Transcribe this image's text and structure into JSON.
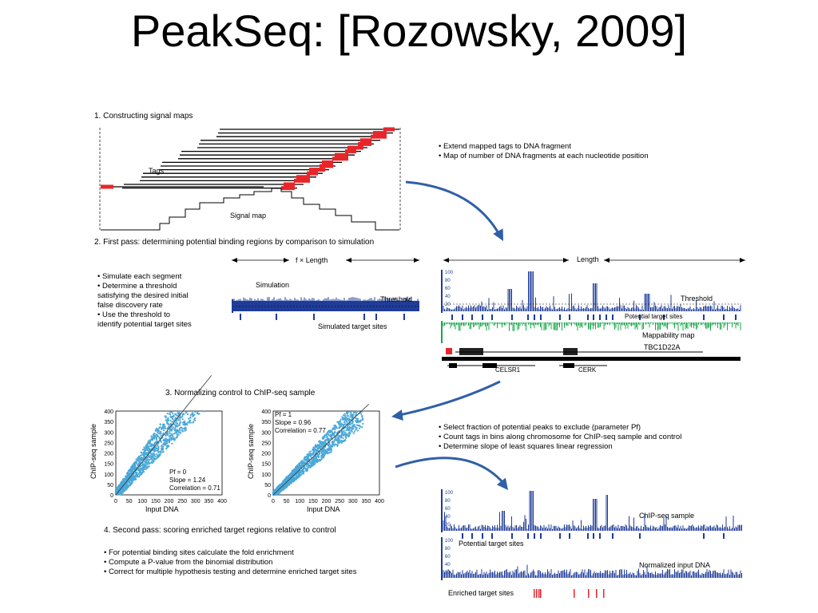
{
  "slide": {
    "title": "PeakSeq: [Rozowsky, 2009]"
  },
  "step1": {
    "heading": "1. Constructing signal maps",
    "tags_label": "Tags",
    "signal_label": "Signal map",
    "bullets": [
      "• Extend mapped tags to DNA fragment",
      "• Map of number of DNA fragments at each nucleotide position"
    ]
  },
  "step2": {
    "heading": "2. First pass: determining potential binding regions by comparison to simulation",
    "bullets": [
      "• Simulate each segment",
      "• Determine a threshold",
      "satisfying the desired initial",
      "false discovery rate",
      "• Use the threshold to",
      "identify potential target sites"
    ],
    "sim_length_label": "f × Length",
    "length_label": "Length",
    "simulation_label": "Simulation",
    "threshold_label": "Threshold",
    "simulated_sites_label": "Simulated target sites",
    "threshold_label_right": "Threshold",
    "potential_sites_label": "Potential target sites",
    "mappability_label": "Mappability map",
    "genes": [
      "TBC1D22A",
      "CELSR1",
      "CERK"
    ],
    "y_ticks": [
      "100",
      "80",
      "60",
      "40",
      "20"
    ]
  },
  "step3": {
    "heading": "3. Normalizing control to ChIP-seq sample",
    "bullets": [
      "• Select fraction of potential peaks to exclude (parameter Pf)",
      "• Count tags in bins along chromosome for ChIP-seq sample and control",
      "• Determine slope of least squares linear regression"
    ],
    "plots": [
      {
        "ylabel": "ChIP-seq sample",
        "xlabel": "Input DNA",
        "stats": [
          "Pf = 0",
          "Slope = 1.24",
          "Correlation = 0.71"
        ]
      },
      {
        "ylabel": "ChIP-seq sample",
        "xlabel": "Input DNA",
        "stats": [
          "Pf = 1",
          "Slope = 0.96",
          "Correlation = 0.77"
        ]
      }
    ],
    "x_ticks": [
      "0",
      "50",
      "100",
      "150",
      "200",
      "250",
      "300",
      "350",
      "400"
    ],
    "y_ticks": [
      "400",
      "350",
      "300",
      "250",
      "200",
      "150",
      "100",
      "50",
      "0"
    ]
  },
  "step4": {
    "heading": "4. Second pass: scoring enriched target regions relative to control",
    "bullets": [
      "• For potential binding sites calculate the fold enrichment",
      "• Compute a P-value from the binomial distribution",
      "• Correct for multiple hypothesis testing and determine enriched target sites"
    ],
    "chip_label": "ChIP-seq sample",
    "potential_label": "Potential target sites",
    "input_label": "Normalized input DNA",
    "enriched_label": "Enriched target sites",
    "y_ticks": [
      "100",
      "80",
      "60",
      "40",
      "20"
    ]
  },
  "colors": {
    "blue": "#1f3c99",
    "red": "#e8262a",
    "green": "#1aa64a",
    "arrow": "#2f5fa8",
    "scatter": "#4aa8d8"
  }
}
